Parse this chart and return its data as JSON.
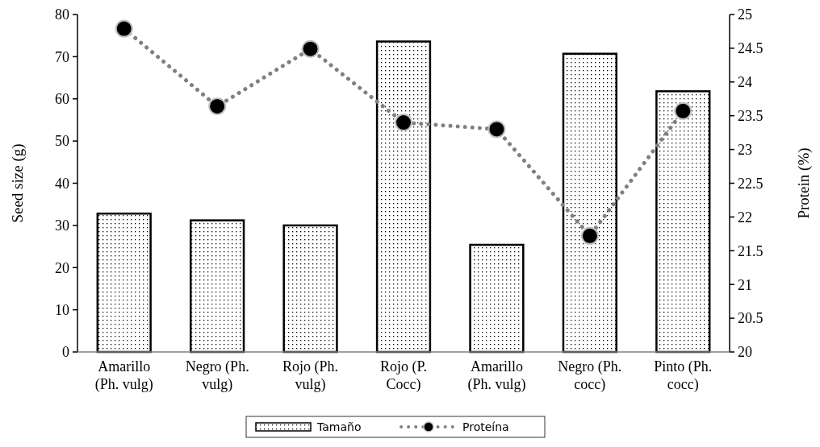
{
  "chart_data": {
    "type": "bar",
    "categories": [
      "Amarillo (Ph. vulg)",
      "Negro (Ph. vulg)",
      "Rojo (Ph. vulg)",
      "Rojo (P. Cocc)",
      "Amarillo (Ph. vulg)",
      "Negro (Ph. cocc)",
      "Pinto (Ph. cocc)"
    ],
    "ylabel": "Seed size (g)",
    "y2label": "Protein (%)",
    "ylim": [
      0,
      80
    ],
    "yticks": [
      0,
      10,
      20,
      30,
      40,
      50,
      60,
      70,
      80
    ],
    "y2lim": [
      20,
      25
    ],
    "y2ticks": [
      20,
      20.5,
      21,
      21.5,
      22,
      22.5,
      23,
      23.5,
      24,
      24.5,
      25
    ],
    "series": [
      {
        "name": "Tamaño",
        "color": "#000000",
        "values": [
          32.8,
          31.2,
          30.0,
          73.6,
          25.4,
          70.7,
          61.8
        ]
      },
      {
        "name": "Proteína",
        "type": "line",
        "axis": "y2",
        "color": "#808080",
        "marker": "circle",
        "line_style": "dotted",
        "values": [
          24.79,
          23.64,
          24.49,
          23.4,
          23.3,
          21.72,
          23.57
        ]
      }
    ],
    "legend": "bottom",
    "grid": false
  }
}
